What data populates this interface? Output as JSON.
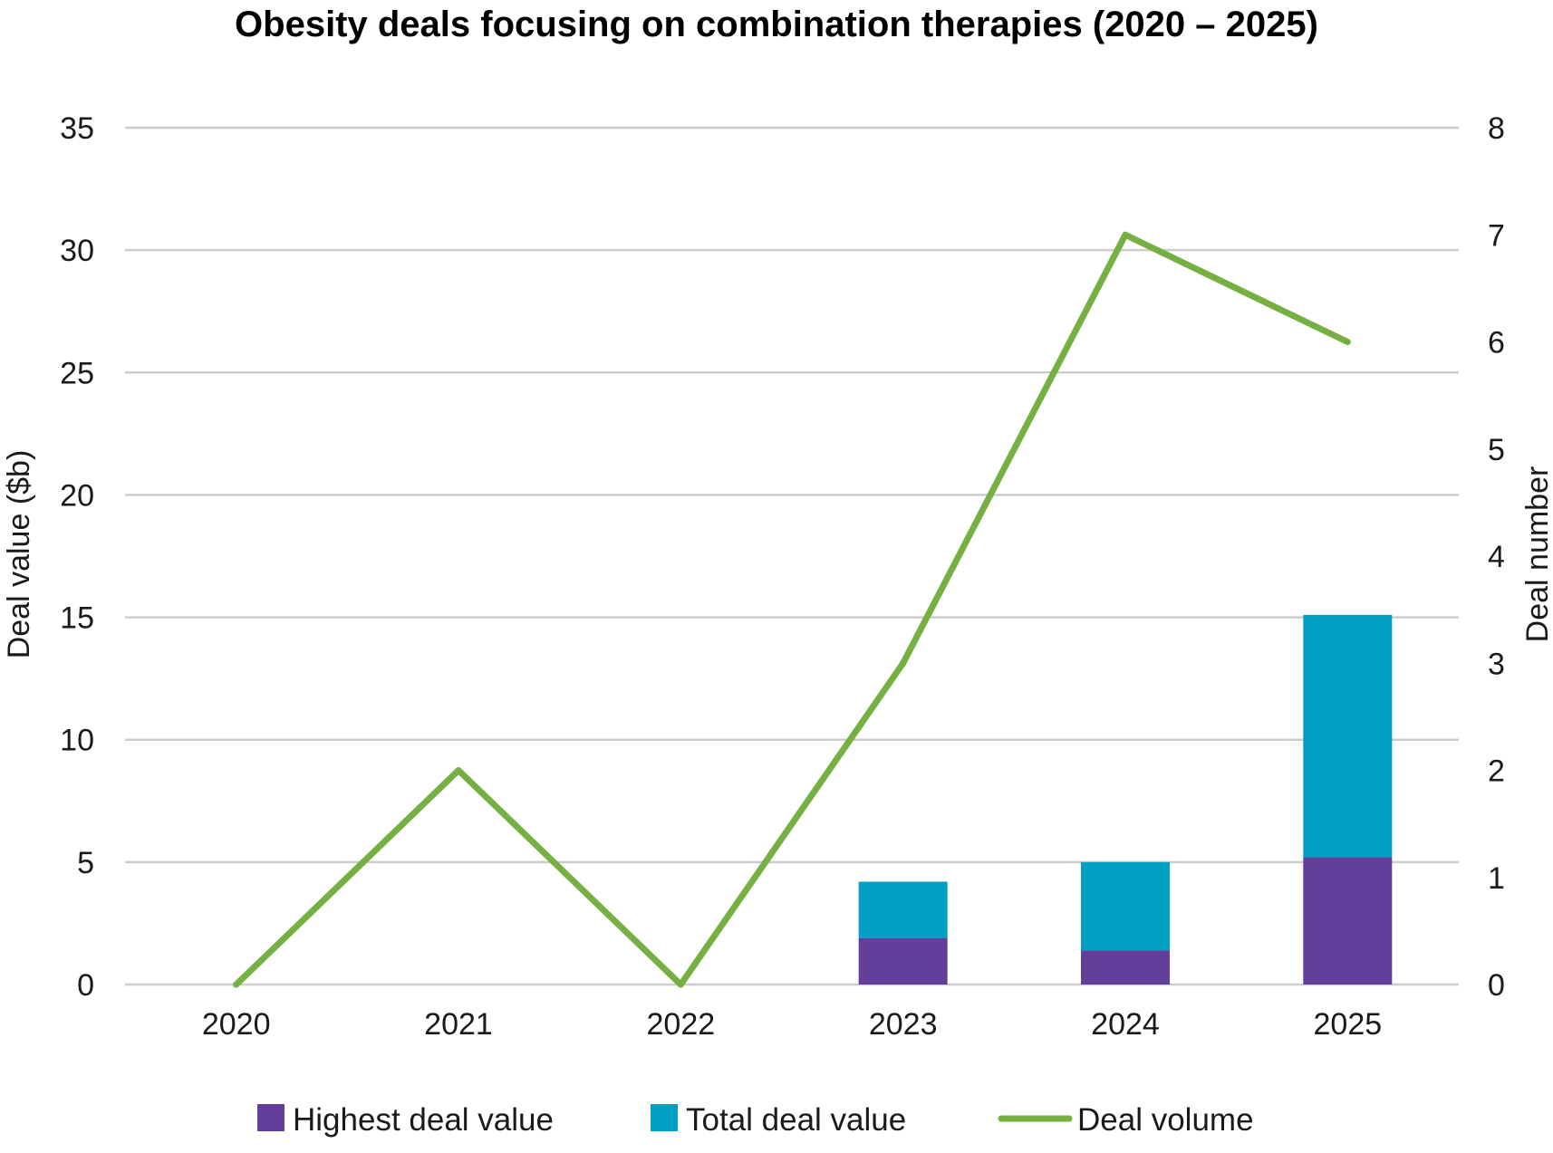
{
  "chart_data": {
    "type": "bar",
    "title": "Obesity deals focusing on combination therapies (2020 – 2025)",
    "categories": [
      "2020",
      "2021",
      "2022",
      "2023",
      "2024",
      "2025"
    ],
    "ylabel": "Deal value ($b)",
    "y2label": "Deal number",
    "ylim": [
      0,
      35
    ],
    "y2lim": [
      0,
      8
    ],
    "yticks": [
      "0",
      "5",
      "10",
      "15",
      "20",
      "25",
      "30",
      "35"
    ],
    "y2ticks": [
      "0",
      "1",
      "2",
      "3",
      "4",
      "5",
      "6",
      "7",
      "8"
    ],
    "stacked": true,
    "grid": true,
    "legend_position": "bottom",
    "series": [
      {
        "name": "Highest deal value",
        "kind": "bar",
        "axis": "left",
        "color": "#62409a",
        "values": [
          0,
          0,
          0,
          1.9,
          1.4,
          5.2
        ]
      },
      {
        "name": "Total deal value",
        "kind": "bar",
        "axis": "left",
        "color": "#009fc3",
        "values": [
          0,
          0,
          0,
          2.3,
          3.6,
          9.9
        ]
      },
      {
        "name": "Deal volume",
        "kind": "line",
        "axis": "right",
        "color": "#76b043",
        "values": [
          0,
          2,
          0,
          3,
          7,
          6
        ]
      }
    ]
  }
}
